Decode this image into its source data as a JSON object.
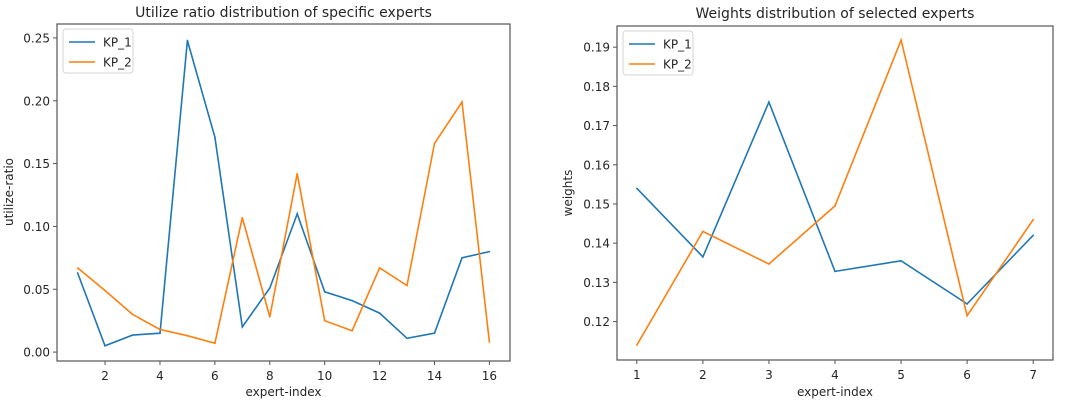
{
  "chart_data": [
    {
      "type": "line",
      "title": "Utilize ratio distribution of specific experts",
      "xlabel": "expert-index",
      "ylabel": "utilize-ratio",
      "x": [
        1,
        2,
        3,
        4,
        5,
        6,
        7,
        8,
        9,
        10,
        11,
        12,
        13,
        14,
        15,
        16
      ],
      "xticks": [
        2,
        4,
        6,
        8,
        10,
        12,
        14,
        16
      ],
      "xtick_labels": [
        "2",
        "4",
        "6",
        "8",
        "10",
        "12",
        "14",
        "16"
      ],
      "yticks": [
        0.0,
        0.05,
        0.1,
        0.15,
        0.2,
        0.25
      ],
      "ytick_labels": [
        "0.00",
        "0.05",
        "0.10",
        "0.15",
        "0.20",
        "0.25"
      ],
      "xlim": [
        0.25,
        16.75
      ],
      "ylim": [
        -0.0071,
        0.2611
      ],
      "grid": false,
      "legend_position": "top-left",
      "series": [
        {
          "name": "KP_1",
          "color": "#1f77b4",
          "values": [
            0.063,
            0.005,
            0.0135,
            0.015,
            0.248,
            0.171,
            0.02,
            0.051,
            0.11,
            0.048,
            0.041,
            0.031,
            0.011,
            0.015,
            0.075,
            0.08
          ]
        },
        {
          "name": "KP_2",
          "color": "#ff7f0e",
          "values": [
            0.067,
            0.049,
            0.03,
            0.018,
            0.013,
            0.007,
            0.107,
            0.028,
            0.142,
            0.025,
            0.017,
            0.067,
            0.053,
            0.166,
            0.199,
            0.008
          ]
        }
      ]
    },
    {
      "type": "line",
      "title": "Weights distribution of selected experts",
      "xlabel": "expert-index",
      "ylabel": "weights",
      "x": [
        1,
        2,
        3,
        4,
        5,
        6,
        7
      ],
      "xticks": [
        1,
        2,
        3,
        4,
        5,
        6,
        7
      ],
      "xtick_labels": [
        "1",
        "2",
        "3",
        "4",
        "5",
        "6",
        "7"
      ],
      "yticks": [
        0.12,
        0.13,
        0.14,
        0.15,
        0.16,
        0.17,
        0.18,
        0.19
      ],
      "ytick_labels": [
        "0.12",
        "0.13",
        "0.14",
        "0.15",
        "0.16",
        "0.17",
        "0.18",
        "0.19"
      ],
      "xlim": [
        0.7,
        7.3
      ],
      "ylim": [
        0.1102,
        0.1954
      ],
      "grid": false,
      "legend_position": "top-left",
      "series": [
        {
          "name": "KP_1",
          "color": "#1f77b4",
          "values": [
            0.154,
            0.1365,
            0.176,
            0.1328,
            0.1355,
            0.1245,
            0.142
          ]
        },
        {
          "name": "KP_2",
          "color": "#ff7f0e",
          "values": [
            0.114,
            0.143,
            0.1347,
            0.1495,
            0.1918,
            0.1215,
            0.146
          ]
        }
      ]
    }
  ]
}
